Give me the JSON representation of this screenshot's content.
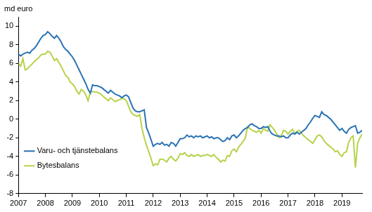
{
  "chart_data": {
    "type": "line",
    "y_label": "md euro",
    "categories": [
      "2007",
      null,
      null,
      null,
      null,
      null,
      null,
      null,
      null,
      null,
      null,
      null,
      "2008",
      null,
      null,
      null,
      null,
      null,
      null,
      null,
      null,
      null,
      null,
      null,
      "2009",
      null,
      null,
      null,
      null,
      null,
      null,
      null,
      null,
      null,
      null,
      null,
      "2010",
      null,
      null,
      null,
      null,
      null,
      null,
      null,
      null,
      null,
      null,
      null,
      "2011",
      null,
      null,
      null,
      null,
      null,
      null,
      null,
      null,
      null,
      null,
      null,
      "2012",
      null,
      null,
      null,
      null,
      null,
      null,
      null,
      null,
      null,
      null,
      null,
      "2013",
      null,
      null,
      null,
      null,
      null,
      null,
      null,
      null,
      null,
      null,
      null,
      "2014",
      null,
      null,
      null,
      null,
      null,
      null,
      null,
      null,
      null,
      null,
      null,
      "2015",
      null,
      null,
      null,
      null,
      null,
      null,
      null,
      null,
      null,
      null,
      null,
      "2016",
      null,
      null,
      null,
      null,
      null,
      null,
      null,
      null,
      null,
      null,
      null,
      "2017",
      null,
      null,
      null,
      null,
      null,
      null,
      null,
      null,
      null,
      null,
      null,
      "2018",
      null,
      null,
      null,
      null,
      null,
      null,
      null,
      null,
      null,
      null,
      null,
      "2019",
      null,
      null,
      null,
      null,
      null,
      null,
      null,
      null,
      null
    ],
    "series": [
      {
        "name": "Varu- och tjänstebalans",
        "color": "#2a73b5",
        "values": [
          7.0,
          6.8,
          7.0,
          7.1,
          7.2,
          7.1,
          7.4,
          7.6,
          7.9,
          8.3,
          8.7,
          9.0,
          9.1,
          9.4,
          9.2,
          8.9,
          8.7,
          9.0,
          8.7,
          8.3,
          7.8,
          7.5,
          7.3,
          7.0,
          6.7,
          6.3,
          5.8,
          5.3,
          4.8,
          4.3,
          3.8,
          3.2,
          2.8,
          3.7,
          3.6,
          3.6,
          3.5,
          3.4,
          3.2,
          3.0,
          2.8,
          3.1,
          2.9,
          2.7,
          2.6,
          2.5,
          2.3,
          2.5,
          2.6,
          2.4,
          1.8,
          1.2,
          0.9,
          0.8,
          0.8,
          0.9,
          1.0,
          -0.9,
          -1.5,
          -2.2,
          -2.9,
          -2.7,
          -2.6,
          -2.7,
          -2.5,
          -2.8,
          -2.7,
          -2.9,
          -2.5,
          -2.6,
          -2.9,
          -2.5,
          -2.1,
          -2.1,
          -2.0,
          -1.7,
          -1.9,
          -1.8,
          -2.0,
          -1.8,
          -1.9,
          -1.8,
          -2.0,
          -1.9,
          -1.8,
          -2.0,
          -1.9,
          -2.1,
          -2.0,
          -2.0,
          -2.2,
          -2.4,
          -2.3,
          -2.0,
          -2.2,
          -1.8,
          -1.7,
          -2.0,
          -1.8,
          -1.5,
          -1.2,
          -1.0,
          -0.9,
          -0.6,
          -0.5,
          -0.7,
          -0.8,
          -1.0,
          -1.0,
          -0.8,
          -0.9,
          -0.8,
          -1.3,
          -1.6,
          -1.7,
          -1.8,
          -1.8,
          -1.9,
          -1.8,
          -2.0,
          -2.0,
          -1.7,
          -1.5,
          -1.6,
          -1.4,
          -1.6,
          -1.4,
          -1.2,
          -1.0,
          -0.6,
          -0.3,
          0.1,
          0.4,
          0.3,
          0.2,
          0.8,
          0.5,
          0.4,
          0.2,
          0.0,
          -0.3,
          -0.6,
          -0.9,
          -1.2,
          -1.0,
          -1.3,
          -1.5,
          -1.1,
          -0.9,
          -0.8,
          -0.7,
          -1.5,
          -1.4,
          -1.2
        ]
      },
      {
        "name": "Bytesbalans",
        "color": "#b6d34a",
        "values": [
          6.0,
          5.7,
          6.5,
          5.3,
          5.4,
          5.7,
          5.9,
          6.2,
          6.4,
          6.6,
          6.9,
          7.0,
          7.0,
          7.3,
          7.2,
          6.8,
          6.3,
          6.5,
          6.1,
          5.7,
          5.2,
          4.7,
          4.5,
          4.0,
          3.8,
          3.5,
          3.0,
          2.7,
          3.2,
          3.0,
          2.6,
          2.0,
          2.9,
          3.0,
          2.9,
          2.9,
          2.8,
          2.6,
          2.4,
          2.2,
          2.0,
          2.3,
          2.1,
          1.9,
          2.0,
          2.1,
          2.2,
          2.2,
          2.0,
          1.4,
          0.8,
          0.5,
          0.4,
          0.3,
          0.5,
          -1.0,
          -2.0,
          -2.8,
          -3.5,
          -4.2,
          -5.0,
          -4.8,
          -4.9,
          -4.3,
          -4.3,
          -4.4,
          -4.6,
          -4.2,
          -4.0,
          -4.3,
          -4.5,
          -4.2,
          -3.7,
          -3.8,
          -3.6,
          -3.9,
          -4.0,
          -3.8,
          -4.0,
          -3.9,
          -3.8,
          -4.0,
          -3.9,
          -3.9,
          -3.8,
          -3.9,
          -4.0,
          -3.8,
          -4.1,
          -4.3,
          -4.6,
          -4.4,
          -4.5,
          -3.9,
          -4.0,
          -3.4,
          -3.2,
          -3.5,
          -3.0,
          -2.7,
          -2.4,
          -2.0,
          -0.8,
          -1.0,
          -1.2,
          -1.3,
          -1.4,
          -1.2,
          -1.5,
          -1.0,
          -1.2,
          -1.3,
          -0.6,
          -0.9,
          -1.2,
          -1.6,
          -2.0,
          -1.8,
          -1.2,
          -1.3,
          -1.6,
          -1.3,
          -1.1,
          -1.5,
          -1.3,
          -1.2,
          -1.5,
          -1.8,
          -2.0,
          -2.2,
          -2.4,
          -2.6,
          -2.2,
          -1.8,
          -1.7,
          -1.9,
          -2.3,
          -2.6,
          -2.8,
          -3.0,
          -3.2,
          -3.5,
          -3.4,
          -3.8,
          -4.0,
          -3.6,
          -3.5,
          -2.5,
          -2.0,
          -1.8,
          -5.2,
          -2.6,
          -2.0,
          -1.6
        ]
      }
    ],
    "ylim": [
      -8,
      11
    ],
    "yticks": [
      -8,
      -6,
      -4,
      -2,
      0,
      2,
      4,
      6,
      8,
      10
    ],
    "grid": false,
    "legend": "upper right"
  }
}
